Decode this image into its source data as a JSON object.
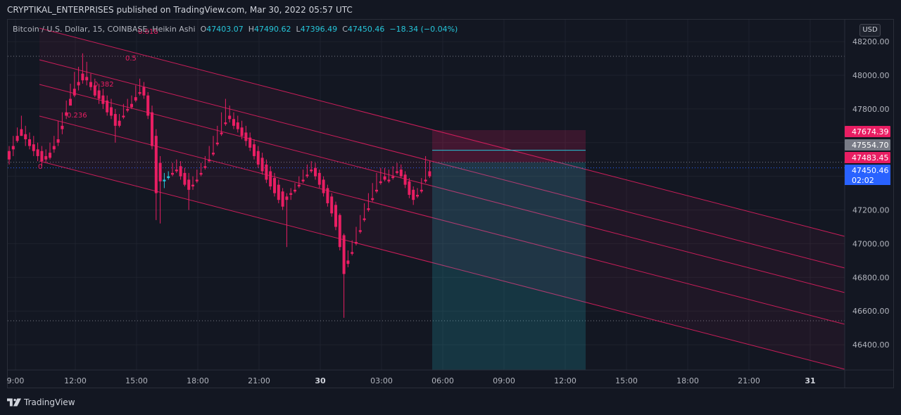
{
  "header": {
    "published_line": "CRYPTIKAL_ENTERPRISES published on TradingView.com, Mar 30, 2022 05:57 UTC"
  },
  "legend": {
    "symbol": "Bitcoin / U.S. Dollar, 15, COINBASE, Heikin Ashi",
    "o_label": "O",
    "o_value": "47403.07",
    "h_label": "H",
    "h_value": "47490.62",
    "l_label": "L",
    "l_value": "47396.49",
    "c_label": "C",
    "c_value": "47450.46",
    "change": "−18.34 (−0.04%)"
  },
  "toolbar": {
    "currency_button": "USD"
  },
  "footer": {
    "brand": "TradingView"
  },
  "colors": {
    "background": "#131722",
    "up": "#26c6da",
    "down": "#e91e63",
    "channel": "#e91e63",
    "grid": "#1e222d",
    "text": "#b2b5be"
  },
  "chart_data": {
    "type": "candlestick",
    "style": "Heikin Ashi",
    "timeframe": "15",
    "exchange": "COINBASE",
    "x_ticks": [
      "9:00",
      "12:00",
      "15:00",
      "18:00",
      "21:00",
      "30",
      "03:00",
      "06:00",
      "09:00",
      "12:00",
      "15:00",
      "18:00",
      "21:00",
      "31"
    ],
    "y_ticks": [
      "48200.00",
      "48000.00",
      "47800.00",
      "47600.00",
      "47400.00",
      "47200.00",
      "47000.00",
      "46800.00",
      "46600.00",
      "46400.00"
    ],
    "ylim": [
      46250,
      48330
    ],
    "price_labels": [
      {
        "value": "47674.39",
        "role": "stop"
      },
      {
        "value": "47554.70",
        "role": "last"
      },
      {
        "value": "47483.45",
        "role": "entry"
      },
      {
        "value": "47450.46",
        "role": "current"
      },
      {
        "value": "02:02",
        "role": "countdown"
      }
    ],
    "fib_labels": [
      "0.618",
      "0.5",
      "0.382",
      "0.236",
      "0"
    ],
    "candles": [
      [
        47550,
        47580,
        47500,
        47470
      ],
      [
        47580,
        47640,
        47560,
        47520
      ],
      [
        47640,
        47690,
        47610,
        47600
      ],
      [
        47680,
        47760,
        47640,
        47640
      ],
      [
        47650,
        47700,
        47620,
        47580
      ],
      [
        47620,
        47660,
        47580,
        47560
      ],
      [
        47590,
        47640,
        47550,
        47520
      ],
      [
        47560,
        47600,
        47520,
        47490
      ],
      [
        47550,
        47580,
        47490,
        47460
      ],
      [
        47520,
        47560,
        47500,
        47480
      ],
      [
        47540,
        47600,
        47510,
        47500
      ],
      [
        47580,
        47640,
        47560,
        47540
      ],
      [
        47620,
        47730,
        47600,
        47580
      ],
      [
        47700,
        47780,
        47680,
        47650
      ],
      [
        47780,
        47850,
        47760,
        47740
      ],
      [
        47860,
        47950,
        47820,
        47820
      ],
      [
        47920,
        48020,
        47880,
        47870
      ],
      [
        47960,
        48050,
        47940,
        47910
      ],
      [
        48010,
        48130,
        47970,
        47950
      ],
      [
        47990,
        48080,
        47970,
        47940
      ],
      [
        47960,
        48010,
        47930,
        47910
      ],
      [
        47940,
        47980,
        47880,
        47870
      ],
      [
        47910,
        47950,
        47860,
        47830
      ],
      [
        47880,
        47920,
        47830,
        47800
      ],
      [
        47850,
        47880,
        47780,
        47760
      ],
      [
        47810,
        47860,
        47760,
        47740
      ],
      [
        47770,
        47800,
        47700,
        47600
      ],
      [
        47730,
        47770,
        47700,
        47690
      ],
      [
        47760,
        47830,
        47750,
        47740
      ],
      [
        47800,
        47860,
        47790,
        47780
      ],
      [
        47830,
        47880,
        47810,
        47800
      ],
      [
        47870,
        47940,
        47850,
        47840
      ],
      [
        47900,
        47980,
        47890,
        47880
      ],
      [
        47930,
        47960,
        47880,
        47860
      ],
      [
        47880,
        47900,
        47760,
        47740
      ],
      [
        47780,
        47820,
        47580,
        47560
      ],
      [
        47640,
        47680,
        47300,
        47140
      ],
      [
        47480,
        47520,
        47370,
        47120
      ],
      [
        47370,
        47420,
        47380,
        47330
      ],
      [
        47390,
        47430,
        47400,
        47380
      ],
      [
        47420,
        47480,
        47410,
        47400
      ],
      [
        47440,
        47500,
        47430,
        47420
      ],
      [
        47460,
        47490,
        47400,
        47380
      ],
      [
        47420,
        47450,
        47350,
        47340
      ],
      [
        47380,
        47420,
        47320,
        47200
      ],
      [
        47350,
        47400,
        47340,
        47320
      ],
      [
        47380,
        47440,
        47370,
        47360
      ],
      [
        47420,
        47480,
        47410,
        47400
      ],
      [
        47460,
        47520,
        47450,
        47440
      ],
      [
        47500,
        47580,
        47490,
        47480
      ],
      [
        47540,
        47640,
        47530,
        47520
      ],
      [
        47600,
        47700,
        47590,
        47580
      ],
      [
        47660,
        47780,
        47650,
        47640
      ],
      [
        47720,
        47860,
        47710,
        47700
      ],
      [
        47760,
        47820,
        47740,
        47720
      ],
      [
        47740,
        47780,
        47700,
        47680
      ],
      [
        47720,
        47760,
        47680,
        47660
      ],
      [
        47690,
        47730,
        47640,
        47620
      ],
      [
        47660,
        47700,
        47610,
        47580
      ],
      [
        47630,
        47660,
        47570,
        47550
      ],
      [
        47590,
        47620,
        47520,
        47500
      ],
      [
        47550,
        47580,
        47470,
        47450
      ],
      [
        47510,
        47540,
        47430,
        47410
      ],
      [
        47470,
        47500,
        47380,
        47360
      ],
      [
        47430,
        47460,
        47340,
        47320
      ],
      [
        47390,
        47420,
        47300,
        47280
      ],
      [
        47350,
        47380,
        47260,
        47240
      ],
      [
        47310,
        47330,
        47220,
        47200
      ],
      [
        47280,
        47300,
        47260,
        46980
      ],
      [
        47300,
        47330,
        47290,
        47260
      ],
      [
        47320,
        47360,
        47310,
        47300
      ],
      [
        47350,
        47400,
        47340,
        47330
      ],
      [
        47380,
        47440,
        47370,
        47360
      ],
      [
        47410,
        47470,
        47400,
        47390
      ],
      [
        47440,
        47490,
        47430,
        47420
      ],
      [
        47450,
        47480,
        47400,
        47380
      ],
      [
        47420,
        47440,
        47350,
        47330
      ],
      [
        47380,
        47400,
        47300,
        47280
      ],
      [
        47330,
        47350,
        47240,
        47220
      ],
      [
        47280,
        47300,
        47180,
        47160
      ],
      [
        47230,
        47250,
        47100,
        47080
      ],
      [
        47170,
        47180,
        46980,
        46960
      ],
      [
        47050,
        47060,
        46820,
        46560
      ],
      [
        46900,
        46960,
        46880,
        46860
      ],
      [
        46950,
        47020,
        46940,
        46930
      ],
      [
        47010,
        47100,
        47000,
        46990
      ],
      [
        47080,
        47170,
        47070,
        47060
      ],
      [
        47150,
        47240,
        47140,
        47130
      ],
      [
        47210,
        47300,
        47200,
        47190
      ],
      [
        47270,
        47360,
        47260,
        47250
      ],
      [
        47320,
        47420,
        47310,
        47300
      ],
      [
        47370,
        47450,
        47360,
        47350
      ],
      [
        47400,
        47450,
        47380,
        47370
      ],
      [
        47380,
        47440,
        47370,
        47360
      ],
      [
        47400,
        47460,
        47390,
        47380
      ],
      [
        47430,
        47480,
        47420,
        47410
      ],
      [
        47440,
        47470,
        47400,
        47390
      ],
      [
        47410,
        47430,
        47350,
        47330
      ],
      [
        47370,
        47390,
        47290,
        47270
      ],
      [
        47320,
        47340,
        47260,
        47230
      ],
      [
        47290,
        47330,
        47280,
        47270
      ],
      [
        47320,
        47390,
        47310,
        47300
      ],
      [
        47380,
        47520,
        47370,
        47360
      ],
      [
        47430,
        47490,
        47400,
        47390
      ]
    ],
    "channel": {
      "lines": 5,
      "start_time_index": 0,
      "end_time_index": 146
    },
    "position": {
      "entry": 47483.45,
      "stop": 47674.39,
      "target": 46250
    }
  }
}
